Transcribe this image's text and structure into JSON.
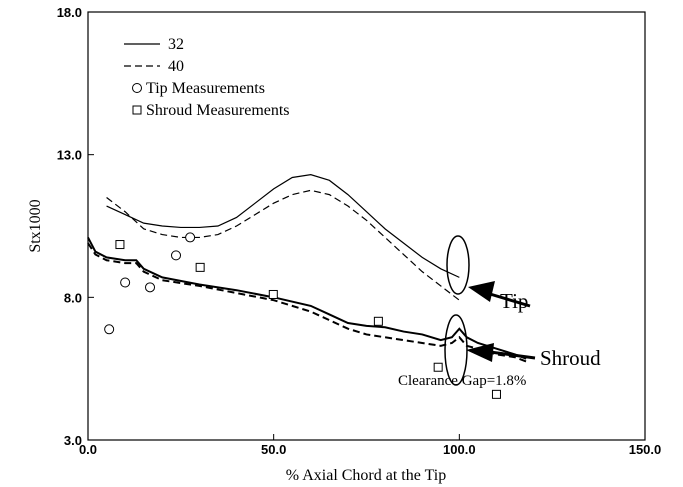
{
  "chart_data": {
    "type": "line",
    "xlabel": "% Axial Chord at the Tip",
    "ylabel": "Stx1000",
    "xlim": [
      0,
      150
    ],
    "ylim": [
      3,
      18
    ],
    "xticks": [
      {
        "value": 0,
        "label": "0.0"
      },
      {
        "value": 50,
        "label": "50.0"
      },
      {
        "value": 100,
        "label": "100.0"
      },
      {
        "value": 150,
        "label": "150.0"
      }
    ],
    "yticks": [
      {
        "value": 3,
        "label": "3.0"
      },
      {
        "value": 8,
        "label": "8.0"
      },
      {
        "value": 13,
        "label": "13.0"
      },
      {
        "value": 18,
        "label": "18.0"
      }
    ],
    "series": [
      {
        "name": "32",
        "color": "#000000",
        "dash": false,
        "curves": [
          {
            "x": [
              5,
              10,
              15,
              20,
              25,
              30,
              35,
              40,
              45,
              50,
              55,
              60,
              65,
              70,
              75,
              80,
              85,
              90,
              95,
              100
            ],
            "values": [
              11.2,
              10.9,
              10.6,
              10.5,
              10.45,
              10.45,
              10.5,
              10.8,
              11.3,
              11.8,
              12.2,
              12.3,
              12.1,
              11.6,
              11.0,
              10.4,
              9.9,
              9.4,
              9.0,
              8.7
            ]
          },
          {
            "x": [
              0,
              2,
              5,
              10,
              13,
              15,
              20,
              30,
              40,
              50,
              60,
              65,
              70,
              75,
              80,
              85,
              90,
              95,
              98,
              100,
              102,
              105,
              110,
              115,
              118
            ],
            "values": [
              10.1,
              9.6,
              9.4,
              9.3,
              9.3,
              9.0,
              8.7,
              8.45,
              8.25,
              8.0,
              7.7,
              7.4,
              7.1,
              7.0,
              6.95,
              6.8,
              6.7,
              6.5,
              6.6,
              6.9,
              6.6,
              6.4,
              6.2,
              6.0,
              5.85
            ]
          }
        ]
      },
      {
        "name": "40",
        "color": "#000000",
        "dash": true,
        "curves": [
          {
            "x": [
              5,
              10,
              15,
              20,
              25,
              30,
              35,
              40,
              45,
              50,
              55,
              60,
              65,
              70,
              75,
              80,
              85,
              90,
              95,
              100
            ],
            "values": [
              11.5,
              11.0,
              10.4,
              10.2,
              10.1,
              10.1,
              10.2,
              10.5,
              10.9,
              11.3,
              11.6,
              11.75,
              11.6,
              11.2,
              10.7,
              10.1,
              9.5,
              8.9,
              8.4,
              7.9
            ]
          },
          {
            "x": [
              0,
              2,
              5,
              10,
              13,
              15,
              20,
              30,
              40,
              50,
              60,
              65,
              70,
              75,
              80,
              85,
              90,
              95,
              98,
              100,
              102,
              105,
              110,
              115,
              118
            ],
            "values": [
              9.9,
              9.5,
              9.3,
              9.2,
              9.2,
              8.9,
              8.6,
              8.4,
              8.15,
              7.9,
              7.5,
              7.2,
              6.9,
              6.7,
              6.6,
              6.5,
              6.4,
              6.3,
              6.4,
              6.6,
              6.3,
              6.2,
              6.0,
              5.9,
              5.75
            ]
          }
        ]
      }
    ],
    "points": [
      {
        "name": "Tip Measurements",
        "marker": "circle",
        "x": [
          5.7,
          10,
          16.7,
          23.7,
          27.5
        ],
        "values": [
          6.88,
          8.52,
          8.35,
          9.47,
          10.1
        ]
      },
      {
        "name": "Shroud Measurements",
        "marker": "square",
        "x": [
          8.6,
          30.2,
          49.9,
          78.2,
          94.3,
          110
        ],
        "values": [
          9.85,
          9.05,
          8.1,
          7.16,
          5.55,
          4.6
        ]
      }
    ],
    "annotations": [
      "Tip",
      "Shroud",
      "Clearance Gap=1.8%"
    ]
  }
}
